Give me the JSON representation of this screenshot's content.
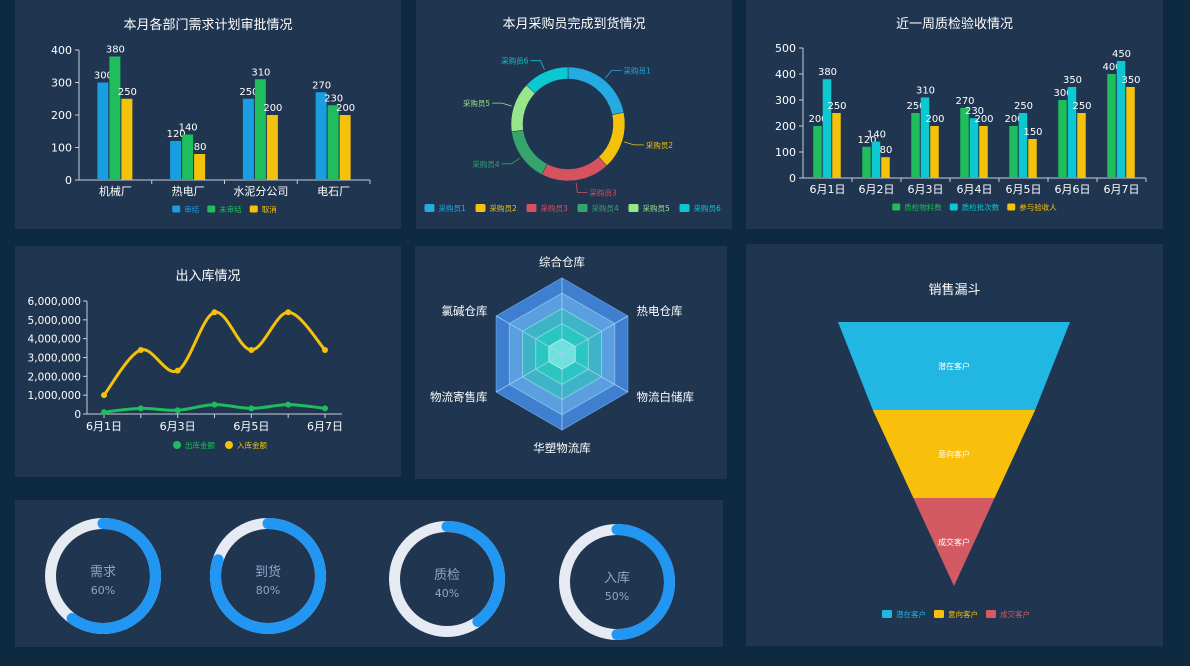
{
  "chart_data": [
    {
      "id": "dept",
      "type": "bar",
      "title": "本月各部门需求计划审批情况",
      "categories": [
        "机械厂",
        "热电厂",
        "水泥分公司",
        "电石厂"
      ],
      "series": [
        {
          "name": "审结",
          "values": [
            300,
            120,
            250,
            270
          ],
          "color": "#1a9ee2"
        },
        {
          "name": "未审结",
          "values": [
            380,
            140,
            310,
            230
          ],
          "color": "#1fbd5c"
        },
        {
          "name": "取消",
          "values": [
            250,
            80,
            200,
            200
          ],
          "color": "#f5c20b"
        }
      ],
      "ylim": [
        0,
        400
      ],
      "yticks": [
        0,
        100,
        200,
        300,
        400
      ],
      "legend": "bottom",
      "grid": false
    },
    {
      "id": "buyer",
      "type": "pie",
      "title": "本月采购员完成到货情况",
      "slices": [
        {
          "name": "采购员1",
          "value": 20,
          "color": "#23abe2"
        },
        {
          "name": "采购员2",
          "value": 15,
          "color": "#f5c20b"
        },
        {
          "name": "采购员3",
          "value": 18,
          "color": "#d6525e"
        },
        {
          "name": "采购员4",
          "value": 14,
          "color": "#36a46d"
        },
        {
          "name": "采购员5",
          "value": 13,
          "color": "#98e68b"
        },
        {
          "name": "采购员6",
          "value": 12,
          "color": "#0bc8d1"
        }
      ],
      "legend": "bottom"
    },
    {
      "id": "qc",
      "type": "bar",
      "title": "近一周质检验收情况",
      "categories": [
        "6月1日",
        "6月2日",
        "6月3日",
        "6月4日",
        "6月5日",
        "6月6日",
        "6月7日"
      ],
      "series": [
        {
          "name": "质检物料数",
          "values": [
            200,
            120,
            250,
            270,
            200,
            300,
            400
          ],
          "color": "#1fbd5c"
        },
        {
          "name": "质检批次数",
          "values": [
            380,
            140,
            310,
            230,
            250,
            350,
            450
          ],
          "color": "#0bc8d1"
        },
        {
          "name": "参与验收人",
          "values": [
            250,
            80,
            200,
            200,
            150,
            250,
            350
          ],
          "color": "#f5c20b"
        }
      ],
      "ylim": [
        0,
        500
      ],
      "yticks": [
        0,
        100,
        200,
        300,
        400,
        500
      ],
      "legend": "bottom",
      "grid": false
    },
    {
      "id": "inout",
      "type": "line",
      "title": "出入库情况",
      "x": [
        "6月1日",
        "6月2日",
        "6月3日",
        "6月4日",
        "6月5日",
        "6月6日",
        "6月7日"
      ],
      "xticks": [
        "6月1日",
        "6月3日",
        "6月5日",
        "6月7日"
      ],
      "series": [
        {
          "name": "出库金额",
          "values": [
            100000,
            300000,
            200000,
            500000,
            300000,
            500000,
            300000
          ],
          "color": "#1fbd5c"
        },
        {
          "name": "入库金额",
          "values": [
            1000000,
            3400000,
            2300000,
            5400000,
            3400000,
            5400000,
            3400000
          ],
          "color": "#f5c20b"
        }
      ],
      "ylim": [
        0,
        6000000
      ],
      "yticks": [
        "0",
        "1,000,000",
        "2,000,000",
        "3,000,000",
        "4,000,000",
        "5,000,000",
        "6,000,000"
      ],
      "legend": "bottom",
      "grid": false
    },
    {
      "id": "radar",
      "type": "radar",
      "indicators": [
        "综合仓库",
        "热电仓库",
        "物流白储库",
        "华塑物流库",
        "物流寄售库",
        "氯碱仓库"
      ],
      "levels": 5
    },
    {
      "id": "funnel",
      "type": "funnel",
      "title": "销售漏斗",
      "stages": [
        {
          "name": "潜在客户",
          "value": 100,
          "color": "#22b6e2"
        },
        {
          "name": "意向客户",
          "value": 70,
          "color": "#f8c00b"
        },
        {
          "name": "成交客户",
          "value": 35,
          "color": "#d35a62"
        }
      ],
      "legend": "bottom"
    },
    {
      "id": "progress",
      "type": "gauge-rings",
      "items": [
        {
          "label": "需求",
          "value": 60,
          "text": "60%"
        },
        {
          "label": "到货",
          "value": 80,
          "text": "80%"
        },
        {
          "label": "质检",
          "value": 40,
          "text": "40%"
        },
        {
          "label": "入库",
          "value": 50,
          "text": "50%"
        }
      ],
      "colors": {
        "fill": "#2196f3",
        "track": "#e6eaf2",
        "label": "#8da7c7"
      }
    }
  ]
}
